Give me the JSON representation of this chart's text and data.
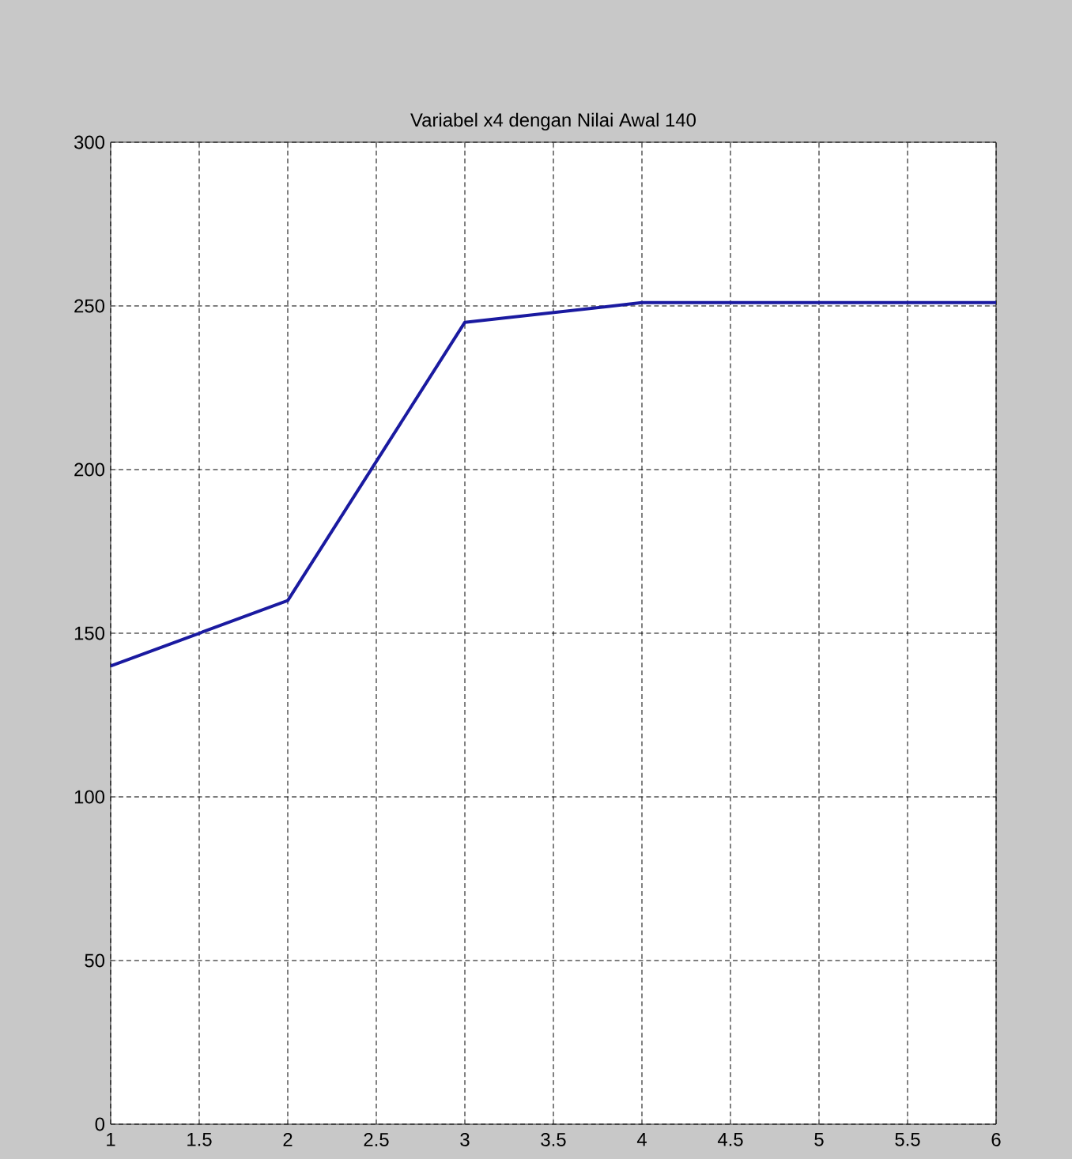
{
  "chart_data": {
    "type": "line",
    "title": "Variabel x4 dengan Nilai Awal 140",
    "x": [
      1,
      2,
      3,
      4,
      5,
      6
    ],
    "series": [
      {
        "color": "#1a1aa0",
        "values": [
          140,
          160,
          245,
          251,
          251,
          251
        ]
      }
    ],
    "xlim": [
      1,
      6
    ],
    "xticks": [
      1,
      1.5,
      2,
      2.5,
      3,
      3.5,
      4,
      4.5,
      5,
      5.5,
      6
    ],
    "ylim": [
      0,
      300
    ],
    "yticks": [
      0,
      50,
      100,
      150,
      200,
      250,
      300
    ],
    "grid": true
  }
}
